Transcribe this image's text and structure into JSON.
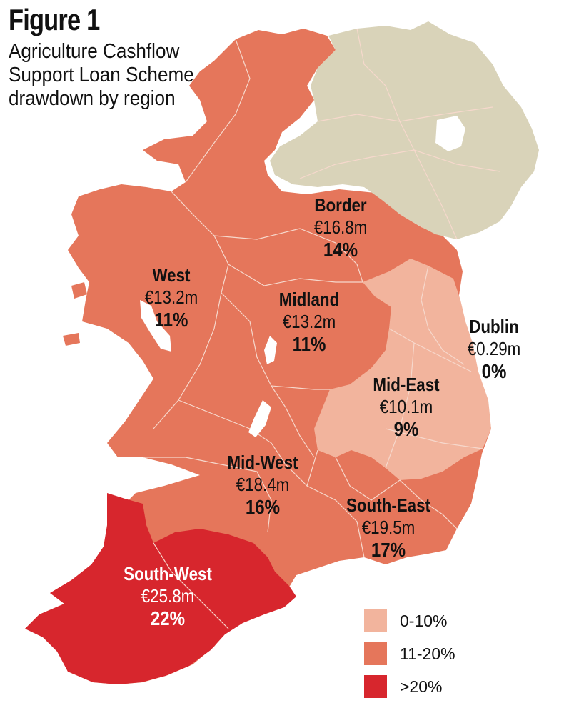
{
  "figure": {
    "title": "Figure 1",
    "subtitle_lines": [
      "Agriculture Cashflow",
      "Support Loan Scheme",
      "drawdown by region"
    ]
  },
  "colors": {
    "northern_ireland": "#d9d3b9",
    "band_0_10": "#f2b49d",
    "band_11_20": "#e5765b",
    "band_over_20": "#d7262d",
    "border_line": "#f6d8cc"
  },
  "regions": [
    {
      "name": "Border",
      "amount": "€16.8m",
      "share": "14%",
      "band": "11-20%"
    },
    {
      "name": "West",
      "amount": "€13.2m",
      "share": "11%",
      "band": "11-20%"
    },
    {
      "name": "Midland",
      "amount": "€13.2m",
      "share": "11%",
      "band": "11-20%"
    },
    {
      "name": "Dublin",
      "amount": "€0.29m",
      "share": "0%",
      "band": "0-10%"
    },
    {
      "name": "Mid-East",
      "amount": "€10.1m",
      "share": "9%",
      "band": "0-10%"
    },
    {
      "name": "Mid-West",
      "amount": "€18.4m",
      "share": "16%",
      "band": "11-20%"
    },
    {
      "name": "South-East",
      "amount": "€19.5m",
      "share": "17%",
      "band": "11-20%"
    },
    {
      "name": "South-West",
      "amount": "€25.8m",
      "share": "22%",
      "band": ">20%"
    }
  ],
  "legend": [
    {
      "label": "0-10%",
      "color": "#f2b49d"
    },
    {
      "label": "11-20%",
      "color": "#e5765b"
    },
    {
      "label": ">20%",
      "color": "#d7262d"
    }
  ]
}
